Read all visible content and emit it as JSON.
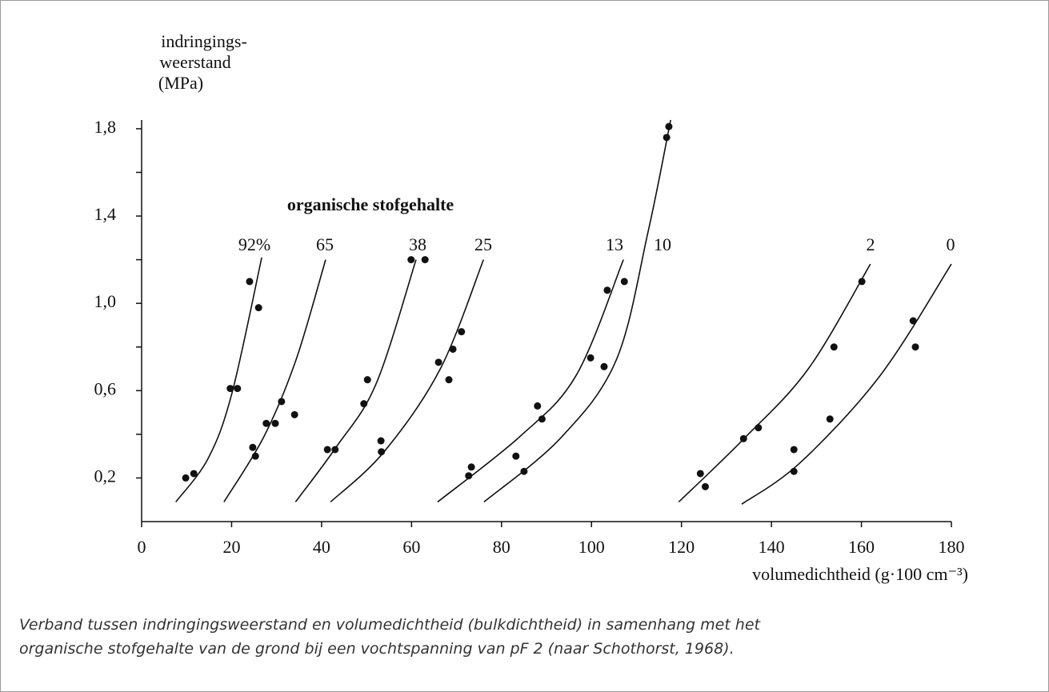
{
  "chart_data": {
    "type": "scatter",
    "y_label_lines": [
      "indringings-",
      "weerstand",
      "(MPa)"
    ],
    "x_label": "volumedichtheid (g·100 cm⁻³)",
    "annotation": "organische stofgehalte",
    "caption_lines": [
      "Verband tussen indringingsweerstand en volumedichtheid (bulkdichtheid) in samenhang met het",
      "organische stofgehalte van de grond bij een vochtspanning van pF 2 (naar Schothorst, 1968)."
    ],
    "xlim": [
      0,
      180
    ],
    "ylim": [
      0,
      1.84
    ],
    "xticks": [
      0,
      20,
      40,
      60,
      80,
      100,
      120,
      140,
      160,
      180
    ],
    "yticks": [
      {
        "value": 0.2,
        "label": "0,2"
      },
      {
        "value": 0.6,
        "label": "0,6"
      },
      {
        "value": 1.0,
        "label": "1,0"
      },
      {
        "value": 1.4,
        "label": "1,4"
      },
      {
        "value": 1.8,
        "label": "1,8"
      }
    ],
    "minor_yticks": [
      0.4,
      0.8,
      1.2,
      1.6
    ],
    "color": "#111111",
    "points": {
      "x": [
        9.8,
        11.6,
        24.0,
        26.0,
        19.7,
        21.3,
        24.7,
        25.3,
        27.7,
        29.7,
        31.1,
        34.0,
        41.3,
        43.0,
        49.4,
        50.2,
        53.2,
        53.3,
        59.9,
        63.0,
        66.0,
        68.3,
        69.2,
        71.1,
        72.7,
        73.3,
        83.2,
        85.0,
        88.0,
        89.0,
        99.8,
        102.8,
        103.5,
        107.3,
        116.7,
        117.2,
        124.2,
        125.3,
        133.8,
        137.1,
        153.9,
        160.1,
        145.0,
        145.0,
        153.0,
        171.5,
        172.0
      ],
      "y": [
        0.2,
        0.22,
        1.1,
        0.98,
        0.61,
        0.61,
        0.34,
        0.3,
        0.45,
        0.45,
        0.55,
        0.49,
        0.33,
        0.33,
        0.54,
        0.65,
        0.37,
        0.32,
        1.2,
        1.2,
        0.73,
        0.65,
        0.79,
        0.87,
        0.21,
        0.25,
        0.3,
        0.23,
        0.53,
        0.47,
        0.75,
        0.71,
        1.06,
        1.1,
        1.76,
        1.81,
        0.22,
        0.16,
        0.38,
        0.43,
        0.8,
        1.1,
        0.23,
        0.33,
        0.47,
        0.92,
        0.8
      ]
    },
    "curves": [
      {
        "name": "92%",
        "x": [
          7.6,
          14.8,
          20.1,
          26.7
        ],
        "y": [
          0.09,
          0.29,
          0.59,
          1.21
        ]
      },
      {
        "name": "65",
        "x": [
          18.3,
          27.2,
          34.3,
          40.9
        ],
        "y": [
          0.09,
          0.39,
          0.74,
          1.2
        ]
      },
      {
        "name": "38",
        "x": [
          34.2,
          43.2,
          52.1,
          61.0
        ],
        "y": [
          0.09,
          0.34,
          0.63,
          1.2
        ]
      },
      {
        "name": "25",
        "x": [
          42.0,
          53.9,
          66.4,
          76.0
        ],
        "y": [
          0.09,
          0.32,
          0.7,
          1.2
        ]
      },
      {
        "name": "13",
        "x": [
          65.8,
          84.1,
          96.6,
          107.1
        ],
        "y": [
          0.09,
          0.39,
          0.67,
          1.2
        ]
      },
      {
        "name": "10",
        "x": [
          76.1,
          93.0,
          105.5,
          112.6,
          117.6
        ],
        "y": [
          0.09,
          0.38,
          0.74,
          1.33,
          1.84
        ]
      },
      {
        "name": "2",
        "x": [
          119.4,
          133.9,
          148.2,
          162.0
        ],
        "y": [
          0.09,
          0.38,
          0.7,
          1.18
        ]
      },
      {
        "name": "0",
        "x": [
          133.4,
          146.4,
          164.2,
          180.0
        ],
        "y": [
          0.08,
          0.27,
          0.67,
          1.18
        ]
      }
    ]
  }
}
